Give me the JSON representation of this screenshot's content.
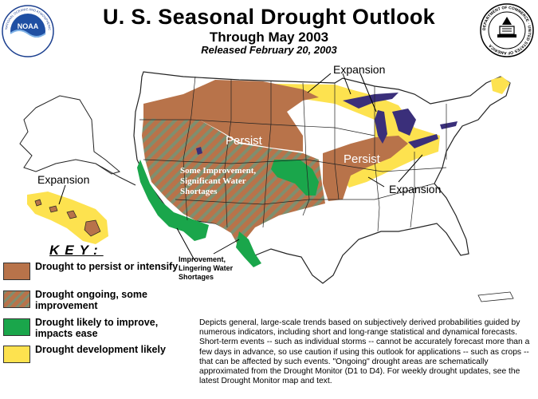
{
  "header": {
    "title": "U. S. Seasonal Drought Outlook",
    "subtitle": "Through May 2003",
    "released": "Released February 20, 2003"
  },
  "logos": {
    "noaa": {
      "text": "NOAA",
      "ring_text": "NATIONAL OCEANIC AND ATMOSPHERIC ADMINISTRATION"
    },
    "commerce": {
      "ring_text": "DEPARTMENT OF COMMERCE · UNITED STATES OF AMERICA"
    }
  },
  "map_labels": {
    "expansion_north": "Expansion",
    "expansion_hawaii": "Expansion",
    "expansion_east": "Expansion",
    "persist_west": "Persist",
    "persist_east": "Persist",
    "some_improvement": [
      "Some Improvement,",
      "Significant Water",
      "Shortages"
    ],
    "improvement_sw": [
      "Improvement,",
      "Lingering Water",
      "Shortages"
    ]
  },
  "key": {
    "title": "KEY:",
    "items": [
      {
        "label": "Drought to persist or intensify",
        "color": "#b8734a",
        "pattern": "solid"
      },
      {
        "label": "Drought ongoing, some improvement",
        "color": "#b8734a",
        "pattern": "hatched"
      },
      {
        "label": "Drought likely to improve, impacts ease",
        "color": "#1aa64b",
        "pattern": "solid"
      },
      {
        "label": "Drought development likely",
        "color": "#fde24f",
        "pattern": "solid"
      }
    ]
  },
  "disclaimer": "Depicts general, large-scale trends based on subjectively derived probabilities guided by numerous indicators, including short and long-range statistical and dynamical forecasts. Short-term events -- such as individual storms -- cannot be accurately forecast more than a few days in advance, so use caution if using this outlook for applications -- such as crops -- that can be affected by such events. \"Ongoing\" drought areas are schematically approximated from the Drought Monitor (D1 to D4). For weekly drought updates, see the latest Drought Monitor map and text.",
  "colors": {
    "persist": "#b8734a",
    "improve": "#1aa64b",
    "develop": "#fde24f",
    "water": "#3a2f7a",
    "border": "#222222"
  }
}
